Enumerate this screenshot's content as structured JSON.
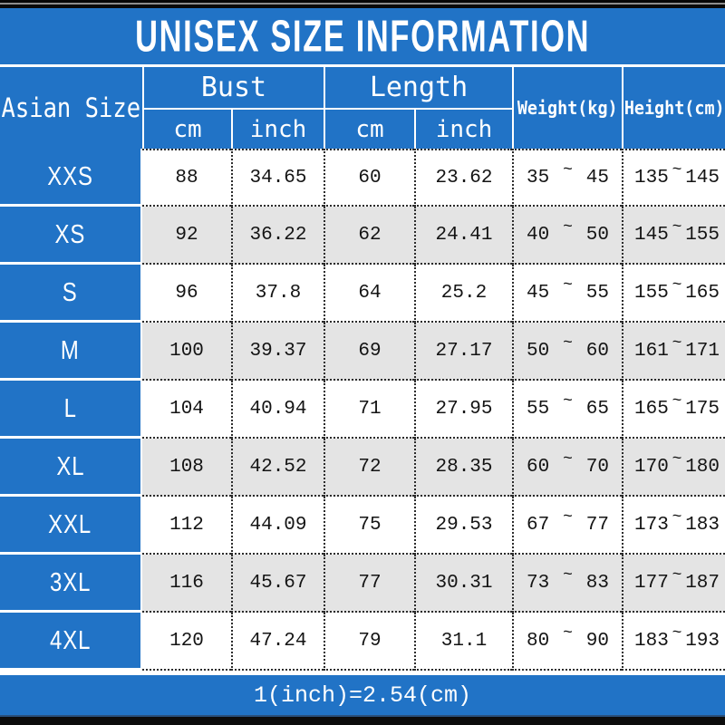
{
  "title": "UNISEX SIZE INFORMATION",
  "footer": {
    "note": "1(inch)=2.54(cm)"
  },
  "colors": {
    "blue": "#2173C6",
    "alt_row_gray": "#E4E4E4",
    "text_dark": "#141414",
    "white": "#FFFFFF"
  },
  "table": {
    "size_header": "Asian Size",
    "tilde": "~",
    "groups": [
      {
        "label": "Bust",
        "units": [
          "cm",
          "inch"
        ]
      },
      {
        "label": "Length",
        "units": [
          "cm",
          "inch"
        ]
      }
    ],
    "single_headers": [
      "Weight(kg)",
      "Height(cm)"
    ],
    "rows": [
      {
        "size": "XXS",
        "bust_cm": "88",
        "bust_inch": "34.65",
        "length_cm": "60",
        "length_inch": "23.62",
        "weight": [
          "35",
          "45"
        ],
        "height": [
          "135",
          "145"
        ]
      },
      {
        "size": "XS",
        "bust_cm": "92",
        "bust_inch": "36.22",
        "length_cm": "62",
        "length_inch": "24.41",
        "weight": [
          "40",
          "50"
        ],
        "height": [
          "145",
          "155"
        ]
      },
      {
        "size": "S",
        "bust_cm": "96",
        "bust_inch": "37.8",
        "length_cm": "64",
        "length_inch": "25.2",
        "weight": [
          "45",
          "55"
        ],
        "height": [
          "155",
          "165"
        ]
      },
      {
        "size": "M",
        "bust_cm": "100",
        "bust_inch": "39.37",
        "length_cm": "69",
        "length_inch": "27.17",
        "weight": [
          "50",
          "60"
        ],
        "height": [
          "161",
          "171"
        ]
      },
      {
        "size": "L",
        "bust_cm": "104",
        "bust_inch": "40.94",
        "length_cm": "71",
        "length_inch": "27.95",
        "weight": [
          "55",
          "65"
        ],
        "height": [
          "165",
          "175"
        ]
      },
      {
        "size": "XL",
        "bust_cm": "108",
        "bust_inch": "42.52",
        "length_cm": "72",
        "length_inch": "28.35",
        "weight": [
          "60",
          "70"
        ],
        "height": [
          "170",
          "180"
        ]
      },
      {
        "size": "XXL",
        "bust_cm": "112",
        "bust_inch": "44.09",
        "length_cm": "75",
        "length_inch": "29.53",
        "weight": [
          "67",
          "77"
        ],
        "height": [
          "173",
          "183"
        ]
      },
      {
        "size": "3XL",
        "bust_cm": "116",
        "bust_inch": "45.67",
        "length_cm": "77",
        "length_inch": "30.31",
        "weight": [
          "73",
          "83"
        ],
        "height": [
          "177",
          "187"
        ]
      },
      {
        "size": "4XL",
        "bust_cm": "120",
        "bust_inch": "47.24",
        "length_cm": "79",
        "length_inch": "31.1",
        "weight": [
          "80",
          "90"
        ],
        "height": [
          "183",
          "193"
        ]
      }
    ]
  },
  "chart_data": {
    "type": "table",
    "title": "UNISEX SIZE INFORMATION",
    "columns": [
      "Asian Size",
      "Bust cm",
      "Bust inch",
      "Length cm",
      "Length inch",
      "Weight(kg)",
      "Height(cm)"
    ],
    "rows": [
      [
        "XXS",
        "88",
        "34.65",
        "60",
        "23.62",
        "35~45",
        "135~145"
      ],
      [
        "XS",
        "92",
        "36.22",
        "62",
        "24.41",
        "40~50",
        "145~155"
      ],
      [
        "S",
        "96",
        "37.8",
        "64",
        "25.2",
        "45~55",
        "155~165"
      ],
      [
        "M",
        "100",
        "39.37",
        "69",
        "27.17",
        "50~60",
        "161~171"
      ],
      [
        "L",
        "104",
        "40.94",
        "71",
        "27.95",
        "55~65",
        "165~175"
      ],
      [
        "XL",
        "108",
        "42.52",
        "72",
        "28.35",
        "60~70",
        "170~180"
      ],
      [
        "XXL",
        "112",
        "44.09",
        "75",
        "29.53",
        "67~77",
        "173~183"
      ],
      [
        "3XL",
        "116",
        "45.67",
        "77",
        "30.31",
        "73~83",
        "177~187"
      ],
      [
        "4XL",
        "120",
        "47.24",
        "79",
        "31.1",
        "80~90",
        "183~193"
      ]
    ],
    "footnote": "1(inch)=2.54(cm)"
  }
}
